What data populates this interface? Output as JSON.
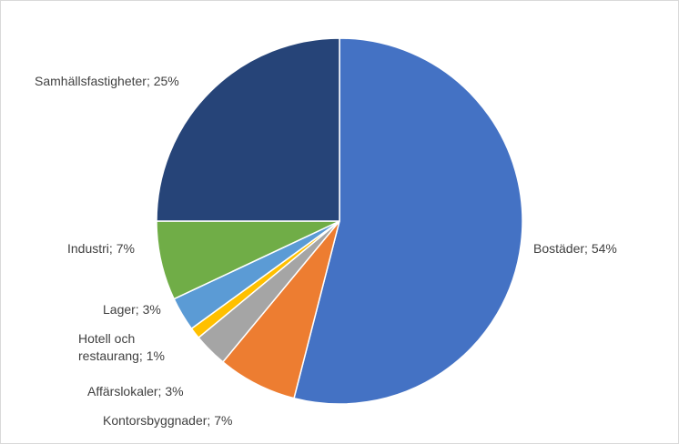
{
  "chart_data": {
    "type": "pie",
    "title": "",
    "slices": [
      {
        "label": "Bostäder; 54%",
        "category": "Bostäder",
        "value": 54,
        "color": "#4472C4"
      },
      {
        "label": "Kontorsbyggnader; 7%",
        "category": "Kontorsbyggnader",
        "value": 7,
        "color": "#ED7D31"
      },
      {
        "label": "Affärslokaler; 3%",
        "category": "Affärslokaler",
        "value": 3,
        "color": "#A5A5A5"
      },
      {
        "label": "Hotell och restaurang; 1%",
        "category": "Hotell och restaurang",
        "value": 1,
        "color": "#FFC000"
      },
      {
        "label": "Lager; 3%",
        "category": "Lager",
        "value": 3,
        "color": "#5B9BD5"
      },
      {
        "label": "Industri; 7%",
        "category": "Industri",
        "value": 7,
        "color": "#70AD47"
      },
      {
        "label": "Samhällsfastigheter; 25%",
        "category": "Samhällsfastigheter",
        "value": 25,
        "color": "#264478"
      }
    ],
    "legend": "none",
    "start_angle": "12 o'clock, clockwise"
  }
}
